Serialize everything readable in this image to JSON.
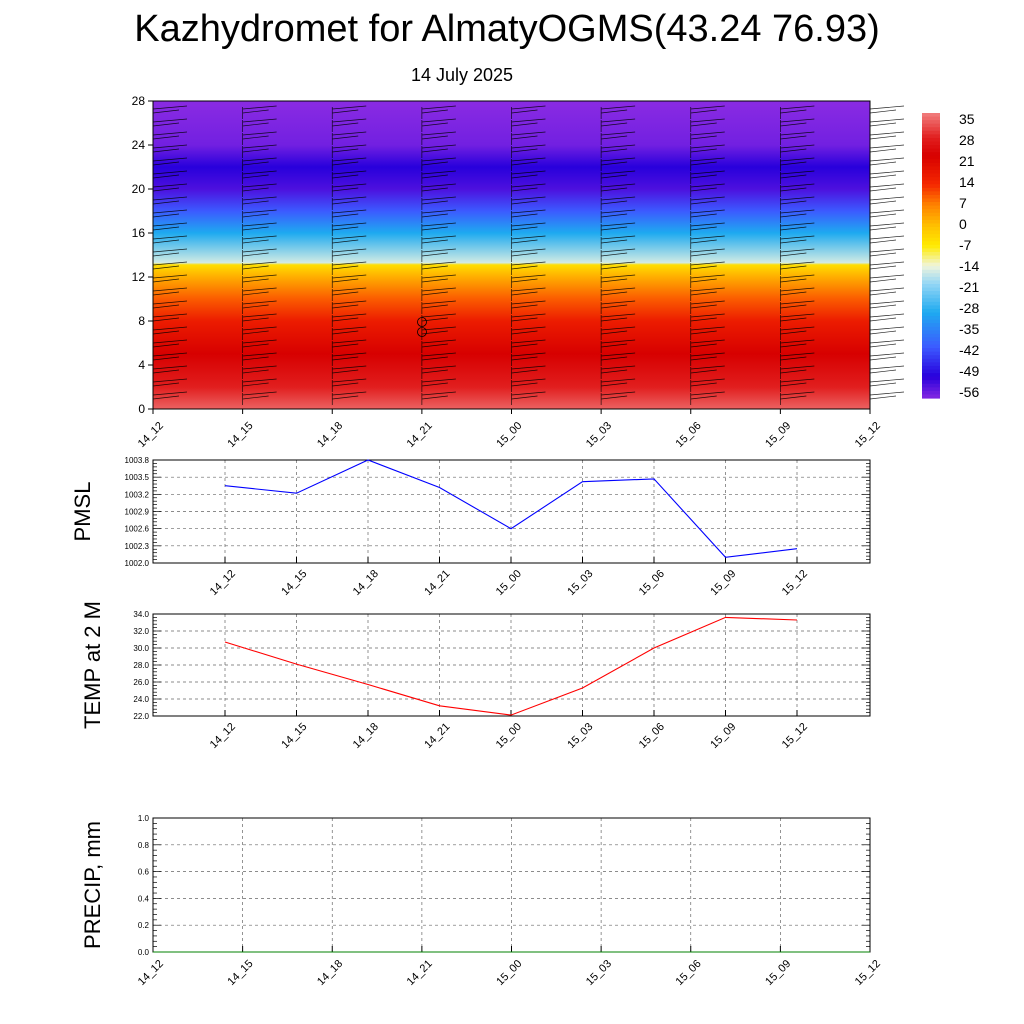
{
  "header": {
    "title": "Kazhydromet for AlmatyOGMS(43.24 76.93)",
    "subtitle": "14 July 2025"
  },
  "chart_data": [
    {
      "type": "heatmap",
      "description_ref": "height-time temperature cross-section with wind barbs",
      "x_categories": [
        "14_12",
        "14_15",
        "14_18",
        "14_21",
        "15_00",
        "15_03",
        "15_06",
        "15_09",
        "15_12"
      ],
      "y_ticks": [
        0,
        4,
        8,
        12,
        16,
        20,
        24,
        28
      ],
      "ylim": [
        0,
        28
      ],
      "colorbar": {
        "labels": [
          "35",
          "28",
          "21",
          "14",
          "7",
          "0",
          "-7",
          "-14",
          "-21",
          "-28",
          "-35",
          "-42",
          "-49",
          "-56"
        ],
        "range": [
          -60,
          38
        ]
      },
      "profile_by_height": [
        {
          "y": 0,
          "t": 36
        },
        {
          "y": 2,
          "t": 30
        },
        {
          "y": 5,
          "t": 24
        },
        {
          "y": 8,
          "t": 17
        },
        {
          "y": 10,
          "t": 10
        },
        {
          "y": 12,
          "t": 2
        },
        {
          "y": 13.1,
          "t": -5
        },
        {
          "y": 13.3,
          "t": -16
        },
        {
          "y": 16,
          "t": -30
        },
        {
          "y": 18,
          "t": -42
        },
        {
          "y": 20,
          "t": -55
        },
        {
          "y": 22,
          "t": -52
        },
        {
          "y": 24,
          "t": -58
        },
        {
          "y": 28,
          "t": -60
        }
      ]
    },
    {
      "type": "line",
      "ylabel": "PMSL",
      "x_categories": [
        "14_12",
        "14_15",
        "14_18",
        "14_21",
        "15_00",
        "15_03",
        "15_06",
        "15_09",
        "15_12"
      ],
      "y_ticks": [
        "1002.0",
        "1002.3",
        "1002.6",
        "1002.9",
        "1003.2",
        "1003.5",
        "1003.8"
      ],
      "ylim": [
        1002.0,
        1003.8
      ],
      "series": [
        {
          "color": "#0000ff",
          "values": [
            1003.35,
            1003.22,
            1003.8,
            1003.32,
            1002.6,
            1003.42,
            1003.47,
            1002.1,
            1002.25
          ]
        }
      ]
    },
    {
      "type": "line",
      "ylabel": "TEMP at 2 M",
      "x_categories": [
        "14_12",
        "14_15",
        "14_18",
        "14_21",
        "15_00",
        "15_03",
        "15_06",
        "15_09",
        "15_12"
      ],
      "y_ticks": [
        "22.0",
        "24.0",
        "26.0",
        "28.0",
        "30.0",
        "32.0",
        "34.0"
      ],
      "ylim": [
        22.0,
        34.0
      ],
      "series": [
        {
          "color": "#ff0000",
          "values": [
            30.7,
            28.1,
            25.7,
            23.2,
            22.1,
            25.3,
            30.0,
            33.6,
            33.3
          ]
        }
      ]
    },
    {
      "type": "line",
      "ylabel": "PRECIP, mm",
      "x_categories": [
        "14_12",
        "14_15",
        "14_18",
        "14_21",
        "15_00",
        "15_03",
        "15_06",
        "15_09",
        "15_12"
      ],
      "y_ticks": [
        "0.0",
        "0.2",
        "0.4",
        "0.6",
        "0.8",
        "1.0"
      ],
      "ylim": [
        0.0,
        1.0
      ],
      "series": [
        {
          "color": "#008000",
          "values": [
            0,
            0,
            0,
            0,
            0,
            0,
            0,
            0,
            0
          ]
        }
      ]
    }
  ]
}
